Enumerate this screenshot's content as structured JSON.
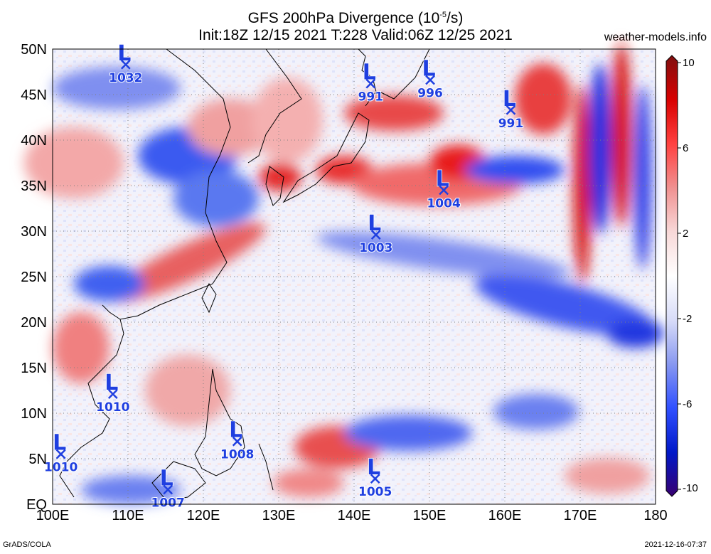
{
  "title": {
    "line1": "GFS 200hPa Divergence (10",
    "line1_sup": "-5",
    "line1_end": "/s)",
    "line2": "Init:18Z 12/15 2021 T:228 Valid:06Z 12/25 2021"
  },
  "site": "weather-models.info",
  "lat_labels": [
    "50N",
    "45N",
    "40N",
    "35N",
    "30N",
    "25N",
    "20N",
    "15N",
    "10N",
    "5N",
    "EQ"
  ],
  "lon_labels": [
    "100E",
    "110E",
    "120E",
    "130E",
    "140E",
    "150E",
    "160E",
    "170E",
    "180"
  ],
  "colorbar": {
    "labels": [
      "10",
      "6",
      "2",
      "-2",
      "-6",
      "-10"
    ],
    "colors": [
      "#380070",
      "#0018c8",
      "#3050ff",
      "#8898f0",
      "#d8dcf8",
      "#ffffff",
      "#f8d8d8",
      "#f09090",
      "#ff4040",
      "#d80000",
      "#801010"
    ]
  },
  "footer": {
    "left": "GrADS/COLA",
    "right": "2021-12-16-07:37"
  },
  "lows": [
    {
      "label": "1032",
      "lon": 109.7,
      "lat": 48.3
    },
    {
      "label": "991",
      "lon": 142.2,
      "lat": 46.2
    },
    {
      "label": "996",
      "lon": 150.1,
      "lat": 46.6
    },
    {
      "label": "991",
      "lon": 160.8,
      "lat": 43.3
    },
    {
      "label": "1004",
      "lon": 151.9,
      "lat": 34.5
    },
    {
      "label": "1003",
      "lon": 142.9,
      "lat": 29.6
    },
    {
      "label": "1010",
      "lon": 108.0,
      "lat": 12.1
    },
    {
      "label": "1010",
      "lon": 101.1,
      "lat": 5.5
    },
    {
      "label": "1008",
      "lon": 124.5,
      "lat": 6.9
    },
    {
      "label": "1005",
      "lon": 142.8,
      "lat": 2.8
    },
    {
      "label": "1007",
      "lon": 115.3,
      "lat": 1.6
    }
  ]
}
